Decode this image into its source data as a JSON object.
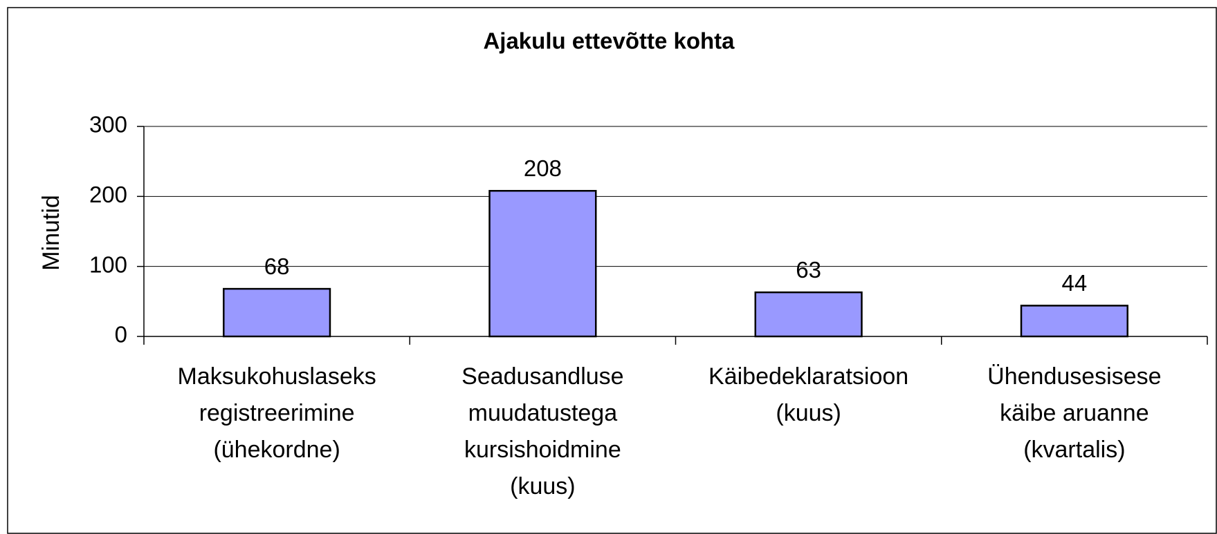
{
  "chart_data": {
    "type": "bar",
    "title": "Ajakulu ettevõtte kohta",
    "ylabel": "Minutid",
    "categories": [
      [
        "Maksukohuslaseks",
        "registreerimine",
        "(ühekordne)"
      ],
      [
        "Seadusandluse",
        "muudatustega",
        "kursishoidmine",
        "(kuus)"
      ],
      [
        "Käibedeklaratsioon",
        "(kuus)"
      ],
      [
        "Ühendusesisese",
        "käibe aruanne",
        "(kvartalis)"
      ]
    ],
    "values": [
      68,
      208,
      63,
      44
    ],
    "color": "#9999ff",
    "ylim": [
      0,
      300
    ],
    "yticks": [
      0,
      100,
      200,
      300
    ],
    "grid": true
  }
}
